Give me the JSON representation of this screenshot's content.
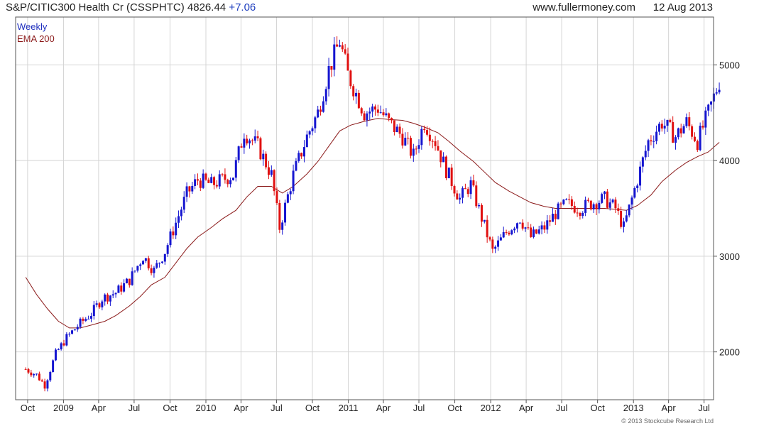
{
  "header": {
    "title": "S&P/CITIC300 Health Cr (CSSPHTC)",
    "price": "4826.44",
    "change": "+7.06",
    "site": "www.fullermoney.com",
    "date": "12 Aug 2013"
  },
  "legend": {
    "series1": "Weekly",
    "series2": "EMA 200"
  },
  "footer": {
    "copyright": "© 2013 Stockcube Research Ltd"
  },
  "colors": {
    "up": "#1515d0",
    "down": "#e01010",
    "ema": "#8b1a1a",
    "grid": "#d4d4d4"
  },
  "chart_data": {
    "type": "line",
    "title": "S&P/CITIC300 Health Cr (CSSPHTC)",
    "y_axis": {
      "ticks": [
        2000,
        3000,
        4000,
        5000
      ],
      "range": [
        1500,
        5500
      ],
      "side": "right"
    },
    "x_axis": {
      "ticks": [
        "Oct",
        "2009",
        "Apr",
        "Jul",
        "Oct",
        "2010",
        "Apr",
        "Jul",
        "Oct",
        "2011",
        "Apr",
        "Jul",
        "Oct",
        "2012",
        "Apr",
        "Jul",
        "Oct",
        "2013",
        "Apr",
        "Jul"
      ]
    },
    "grid": true,
    "series": [
      {
        "name": "Weekly",
        "style": "weekly high-low bars (blue = up, red = down)",
        "anchors": [
          [
            "2008-09-26",
            1820
          ],
          [
            "2008-10-24",
            1760
          ],
          [
            "2008-11-14",
            1650
          ],
          [
            "2008-12-12",
            1980
          ],
          [
            "2009-01-09",
            2150
          ],
          [
            "2009-02-13",
            2300
          ],
          [
            "2009-03-13",
            2400
          ],
          [
            "2009-04-10",
            2560
          ],
          [
            "2009-05-15",
            2620
          ],
          [
            "2009-06-19",
            2750
          ],
          [
            "2009-07-24",
            3000
          ],
          [
            "2009-08-21",
            2850
          ],
          [
            "2009-09-18",
            3050
          ],
          [
            "2009-10-16",
            3350
          ],
          [
            "2009-11-13",
            3650
          ],
          [
            "2009-12-11",
            3800
          ],
          [
            "2010-01-15",
            3750
          ],
          [
            "2010-02-12",
            3800
          ],
          [
            "2010-03-12",
            3850
          ],
          [
            "2010-04-09",
            4300
          ],
          [
            "2010-05-14",
            4150
          ],
          [
            "2010-06-18",
            3850
          ],
          [
            "2010-07-09",
            3300
          ],
          [
            "2010-08-13",
            3850
          ],
          [
            "2010-09-17",
            4250
          ],
          [
            "2010-10-15",
            4500
          ],
          [
            "2010-11-12",
            4950
          ],
          [
            "2010-12-10",
            5250
          ],
          [
            "2010-12-31",
            4900
          ],
          [
            "2011-02-11",
            4500
          ],
          [
            "2011-03-18",
            4550
          ],
          [
            "2011-04-15",
            4400
          ],
          [
            "2011-05-20",
            4250
          ],
          [
            "2011-06-17",
            4050
          ],
          [
            "2011-07-15",
            4400
          ],
          [
            "2011-08-12",
            4200
          ],
          [
            "2011-09-09",
            3900
          ],
          [
            "2011-10-14",
            3600
          ],
          [
            "2011-11-11",
            3750
          ],
          [
            "2011-12-09",
            3400
          ],
          [
            "2012-01-06",
            3050
          ],
          [
            "2012-02-10",
            3250
          ],
          [
            "2012-03-16",
            3400
          ],
          [
            "2012-04-13",
            3200
          ],
          [
            "2012-05-18",
            3300
          ],
          [
            "2012-06-15",
            3450
          ],
          [
            "2012-07-13",
            3550
          ],
          [
            "2012-08-17",
            3500
          ],
          [
            "2012-09-14",
            3550
          ],
          [
            "2012-10-19",
            3600
          ],
          [
            "2012-11-16",
            3500
          ],
          [
            "2012-12-07",
            3300
          ],
          [
            "2013-01-11",
            3800
          ],
          [
            "2013-02-08",
            4200
          ],
          [
            "2013-03-15",
            4400
          ],
          [
            "2013-04-19",
            4250
          ],
          [
            "2013-05-17",
            4400
          ],
          [
            "2013-06-14",
            4200
          ],
          [
            "2013-07-12",
            4500
          ],
          [
            "2013-08-09",
            4826
          ]
        ]
      },
      {
        "name": "EMA 200",
        "style": "line",
        "points": [
          [
            "2008-09-26",
            2780
          ],
          [
            "2008-10-24",
            2600
          ],
          [
            "2008-11-21",
            2450
          ],
          [
            "2008-12-19",
            2320
          ],
          [
            "2009-01-16",
            2250
          ],
          [
            "2009-02-13",
            2250
          ],
          [
            "2009-03-13",
            2280
          ],
          [
            "2009-04-17",
            2320
          ],
          [
            "2009-05-15",
            2380
          ],
          [
            "2009-06-19",
            2480
          ],
          [
            "2009-07-17",
            2580
          ],
          [
            "2009-08-14",
            2700
          ],
          [
            "2009-09-18",
            2780
          ],
          [
            "2009-10-16",
            2930
          ],
          [
            "2009-11-13",
            3080
          ],
          [
            "2009-12-11",
            3200
          ],
          [
            "2010-01-15",
            3300
          ],
          [
            "2010-02-12",
            3390
          ],
          [
            "2010-03-19",
            3480
          ],
          [
            "2010-04-16",
            3620
          ],
          [
            "2010-05-14",
            3730
          ],
          [
            "2010-06-18",
            3730
          ],
          [
            "2010-07-16",
            3660
          ],
          [
            "2010-08-13",
            3730
          ],
          [
            "2010-09-17",
            3860
          ],
          [
            "2010-10-15",
            3990
          ],
          [
            "2010-11-12",
            4150
          ],
          [
            "2010-12-10",
            4310
          ],
          [
            "2011-01-07",
            4370
          ],
          [
            "2011-02-11",
            4410
          ],
          [
            "2011-03-18",
            4440
          ],
          [
            "2011-04-15",
            4430
          ],
          [
            "2011-05-20",
            4420
          ],
          [
            "2011-06-17",
            4390
          ],
          [
            "2011-07-15",
            4350
          ],
          [
            "2011-08-19",
            4290
          ],
          [
            "2011-09-16",
            4200
          ],
          [
            "2011-10-14",
            4100
          ],
          [
            "2011-11-18",
            3990
          ],
          [
            "2011-12-16",
            3880
          ],
          [
            "2012-01-13",
            3770
          ],
          [
            "2012-02-17",
            3680
          ],
          [
            "2012-03-16",
            3620
          ],
          [
            "2012-04-13",
            3560
          ],
          [
            "2012-05-18",
            3520
          ],
          [
            "2012-06-15",
            3500
          ],
          [
            "2012-07-13",
            3500
          ],
          [
            "2012-08-17",
            3500
          ],
          [
            "2012-09-14",
            3500
          ],
          [
            "2012-10-19",
            3500
          ],
          [
            "2012-11-16",
            3490
          ],
          [
            "2012-12-14",
            3480
          ],
          [
            "2013-01-11",
            3530
          ],
          [
            "2013-02-15",
            3640
          ],
          [
            "2013-03-15",
            3780
          ],
          [
            "2013-04-19",
            3900
          ],
          [
            "2013-05-17",
            3980
          ],
          [
            "2013-06-14",
            4040
          ],
          [
            "2013-07-12",
            4090
          ],
          [
            "2013-08-09",
            4190
          ]
        ]
      }
    ]
  }
}
